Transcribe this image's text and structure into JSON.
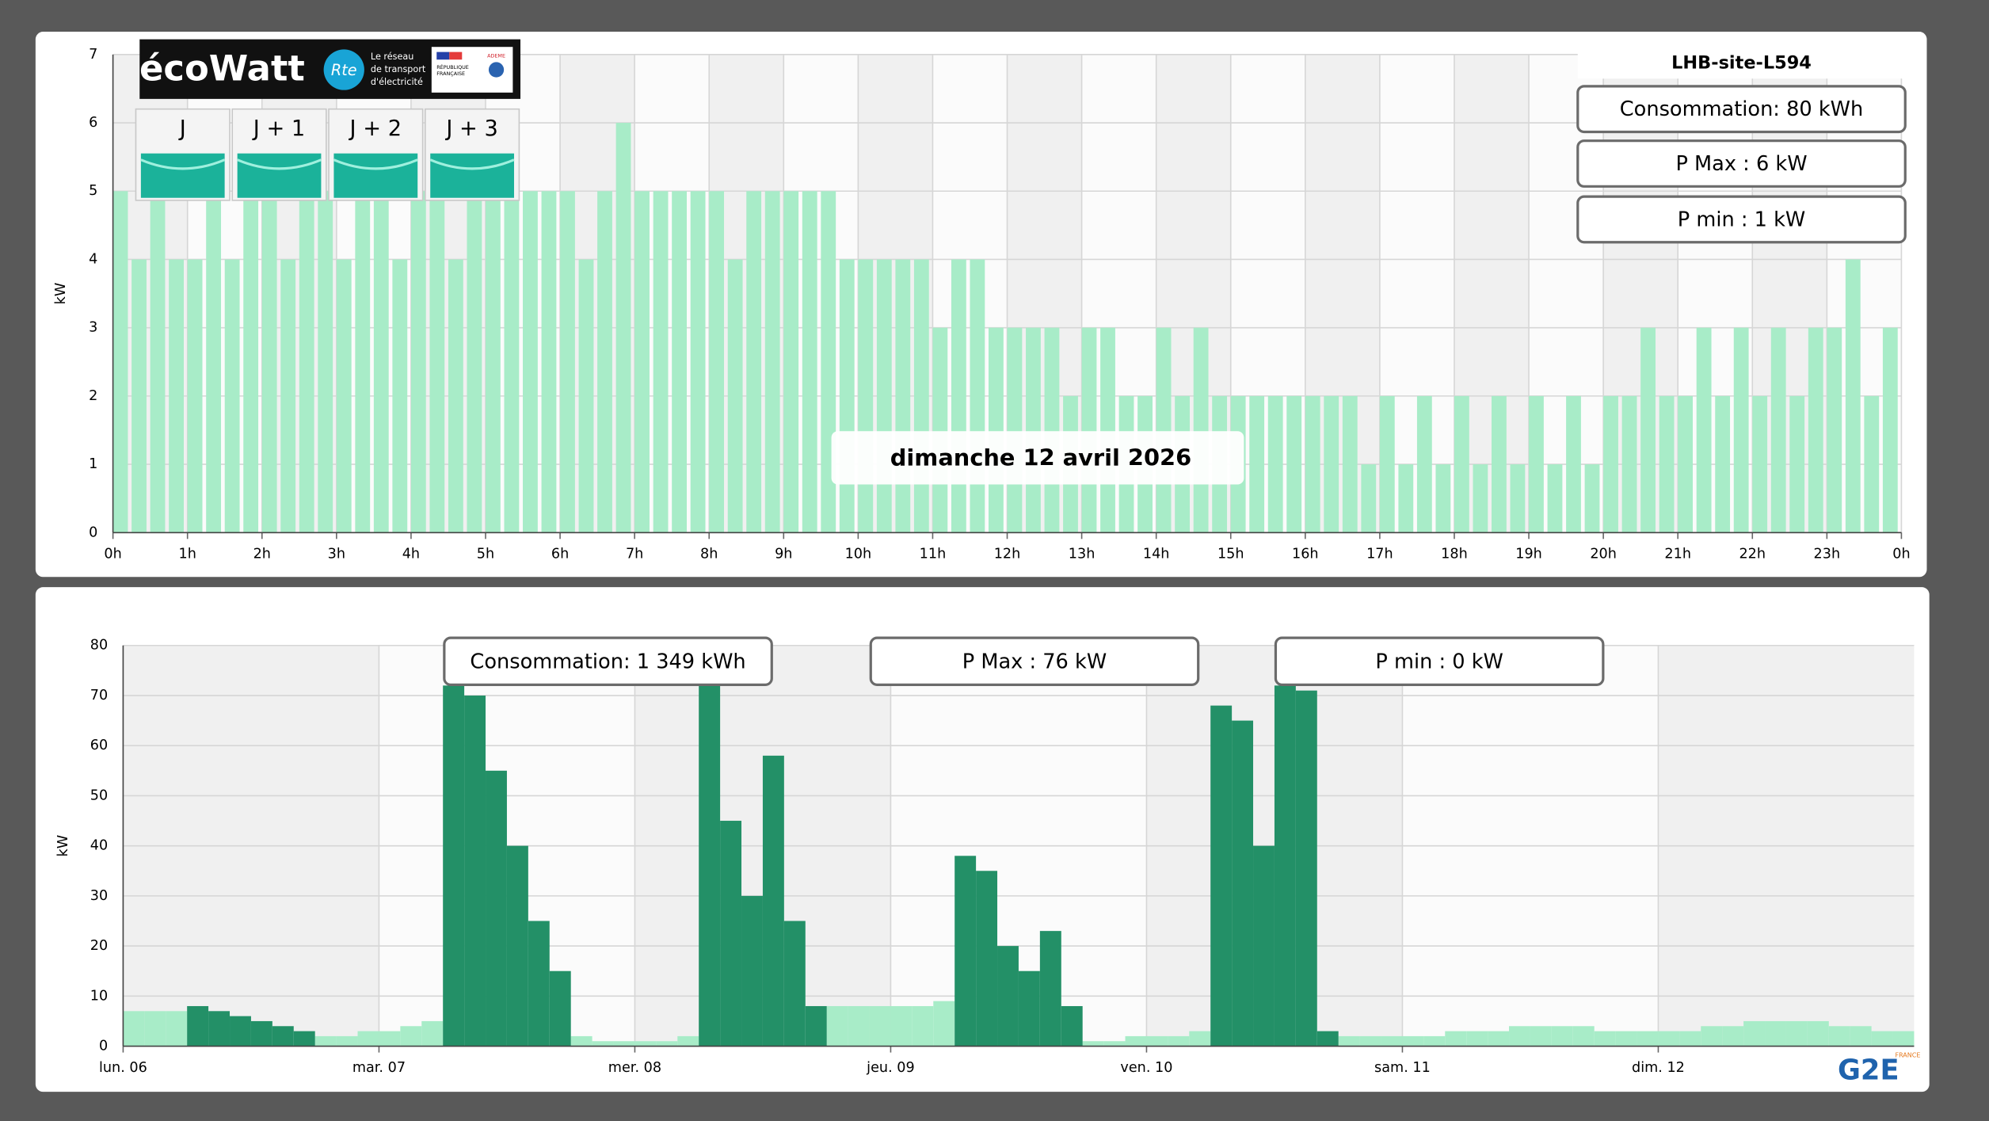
{
  "ecowatt": {
    "brand": "écoWatt",
    "rte": "Rte",
    "rte_tagline": [
      "Le réseau",
      "de transport",
      "d'électricité"
    ],
    "gov": [
      "RÉPUBLIQUE",
      "FRANÇAISE"
    ],
    "ademe": "ADEME",
    "days": [
      "J",
      "J + 1",
      "J + 2",
      "J + 3"
    ]
  },
  "logo": {
    "name": "G2E",
    "country": "FRANCE"
  },
  "chart_data": [
    {
      "type": "bar",
      "y_label": "kW",
      "site": "LHB-site-L594",
      "stats": [
        "Consommation: 80 kWh",
        "P Max :  6 kW",
        "P min : 1 kW"
      ],
      "annotation": "dimanche 12 avril 2026",
      "color": "#a8ecc8",
      "x": [
        0,
        0.25,
        0.5,
        0.75,
        1,
        1.25,
        1.5,
        1.75,
        2,
        2.25,
        2.5,
        2.75,
        3,
        3.25,
        3.5,
        3.75,
        4,
        4.25,
        4.5,
        4.75,
        5,
        5.25,
        5.5,
        5.75,
        6,
        6.25,
        6.5,
        6.75,
        7,
        7.25,
        7.5,
        7.75,
        8,
        8.25,
        8.5,
        8.75,
        9,
        9.25,
        9.5,
        9.75,
        10,
        10.25,
        10.5,
        10.75,
        11,
        11.25,
        11.5,
        11.75,
        12,
        12.25,
        12.5,
        12.75,
        13,
        13.25,
        13.5,
        13.75,
        14,
        14.25,
        14.5,
        14.75,
        15,
        15.25,
        15.5,
        15.75,
        16,
        16.25,
        16.5,
        16.75,
        17,
        17.25,
        17.5,
        17.75,
        18,
        18.25,
        18.5,
        18.75,
        19,
        19.25,
        19.5,
        19.75,
        20,
        20.25,
        20.5,
        20.75,
        21,
        21.25,
        21.5,
        21.75,
        22,
        22.25,
        22.5,
        22.75,
        23,
        23.25,
        23.5,
        23.75
      ],
      "values": [
        5,
        4,
        5,
        4,
        4,
        5,
        4,
        5,
        5,
        4,
        5,
        5,
        4,
        5,
        5,
        4,
        5,
        5,
        4,
        5,
        5,
        5,
        5,
        5,
        5,
        4,
        5,
        6,
        5,
        5,
        5,
        5,
        5,
        4,
        5,
        5,
        5,
        5,
        5,
        4,
        4,
        4,
        4,
        4,
        3,
        4,
        4,
        3,
        3,
        3,
        3,
        2,
        3,
        3,
        2,
        2,
        3,
        2,
        3,
        2,
        2,
        2,
        2,
        2,
        2,
        2,
        2,
        1,
        2,
        1,
        2,
        1,
        2,
        1,
        2,
        1,
        2,
        1,
        2,
        1,
        2,
        2,
        3,
        2,
        2,
        3,
        2,
        3,
        2,
        3,
        2,
        3,
        3,
        4,
        2,
        3
      ],
      "xlim": [
        0,
        24
      ],
      "xticks": [
        {
          "value": 0,
          "label": "0h"
        },
        {
          "value": 1,
          "label": "1h"
        },
        {
          "value": 2,
          "label": "2h"
        },
        {
          "value": 3,
          "label": "3h"
        },
        {
          "value": 4,
          "label": "4h"
        },
        {
          "value": 5,
          "label": "5h"
        },
        {
          "value": 6,
          "label": "6h"
        },
        {
          "value": 7,
          "label": "7h"
        },
        {
          "value": 8,
          "label": "8h"
        },
        {
          "value": 9,
          "label": "9h"
        },
        {
          "value": 10,
          "label": "10h"
        },
        {
          "value": 11,
          "label": "11h"
        },
        {
          "value": 12,
          "label": "12h"
        },
        {
          "value": 13,
          "label": "13h"
        },
        {
          "value": 14,
          "label": "14h"
        },
        {
          "value": 15,
          "label": "15h"
        },
        {
          "value": 16,
          "label": "16h"
        },
        {
          "value": 17,
          "label": "17h"
        },
        {
          "value": 18,
          "label": "18h"
        },
        {
          "value": 19,
          "label": "19h"
        },
        {
          "value": 20,
          "label": "20h"
        },
        {
          "value": 21,
          "label": "21h"
        },
        {
          "value": 22,
          "label": "22h"
        },
        {
          "value": 23,
          "label": "23h"
        },
        {
          "value": 24,
          "label": "0h"
        }
      ],
      "ylim": [
        0,
        7
      ],
      "yticks": [
        0,
        1,
        2,
        3,
        4,
        5,
        6,
        7
      ],
      "grid": true
    },
    {
      "type": "bar",
      "y_label": "kW",
      "stats": [
        "Consommation: 1 349 kWh",
        "P Max :  76 kW",
        "P min : 0 kW"
      ],
      "x": [
        0,
        2,
        4,
        6,
        8,
        10,
        12,
        14,
        16,
        18,
        20,
        22,
        24,
        26,
        28,
        30,
        32,
        34,
        36,
        38,
        40,
        42,
        44,
        46,
        48,
        50,
        52,
        54,
        56,
        58,
        60,
        62,
        64,
        66,
        68,
        70,
        72,
        74,
        76,
        78,
        80,
        82,
        84,
        86,
        88,
        90,
        92,
        94,
        96,
        98,
        100,
        102,
        104,
        106,
        108,
        110,
        112,
        114,
        116,
        118,
        120,
        122,
        124,
        126,
        128,
        130,
        132,
        134,
        136,
        138,
        140,
        142,
        144,
        146,
        148,
        150,
        152,
        154,
        156,
        158,
        160,
        162,
        164,
        166
      ],
      "series": [
        {
          "color": "#a8ecc8",
          "values": [
            7,
            7,
            7,
            null,
            null,
            null,
            null,
            null,
            null,
            2,
            2,
            3,
            3,
            4,
            5,
            null,
            null,
            null,
            null,
            null,
            null,
            2,
            1,
            1,
            1,
            1,
            2,
            null,
            null,
            null,
            null,
            null,
            null,
            8,
            8,
            8,
            8,
            8,
            9,
            null,
            null,
            null,
            null,
            null,
            null,
            1,
            1,
            2,
            2,
            2,
            3,
            null,
            null,
            null,
            null,
            null,
            null,
            2,
            2,
            2,
            2,
            2,
            3,
            3,
            3,
            4,
            4,
            4,
            4,
            3,
            3,
            3,
            3,
            3,
            4,
            4,
            5,
            5,
            5,
            5,
            4,
            4,
            3,
            3
          ]
        },
        {
          "color": "#239067",
          "values": [
            null,
            null,
            null,
            8,
            7,
            6,
            5,
            4,
            3,
            null,
            null,
            null,
            null,
            null,
            null,
            72,
            70,
            55,
            40,
            25,
            15,
            null,
            null,
            null,
            null,
            null,
            null,
            72,
            45,
            30,
            58,
            25,
            8,
            null,
            null,
            null,
            null,
            null,
            null,
            38,
            35,
            20,
            15,
            23,
            8,
            null,
            null,
            null,
            null,
            null,
            null,
            68,
            65,
            40,
            72,
            71,
            3,
            null,
            null,
            null,
            null,
            null,
            null,
            null,
            null,
            null,
            null,
            null,
            null,
            null,
            null,
            null,
            null,
            null,
            null,
            null,
            null,
            null,
            null,
            null,
            null,
            null,
            null,
            null
          ]
        }
      ],
      "xlim": [
        0,
        168
      ],
      "xticks": [
        {
          "value": 0,
          "label": "lun. 06"
        },
        {
          "value": 24,
          "label": "mar. 07"
        },
        {
          "value": 48,
          "label": "mer. 08"
        },
        {
          "value": 72,
          "label": "jeu. 09"
        },
        {
          "value": 96,
          "label": "ven. 10"
        },
        {
          "value": 120,
          "label": "sam. 11"
        },
        {
          "value": 144,
          "label": "dim. 12"
        }
      ],
      "ylim": [
        0,
        80
      ],
      "yticks": [
        0,
        10,
        20,
        30,
        40,
        50,
        60,
        70,
        80
      ],
      "grid": true
    }
  ]
}
